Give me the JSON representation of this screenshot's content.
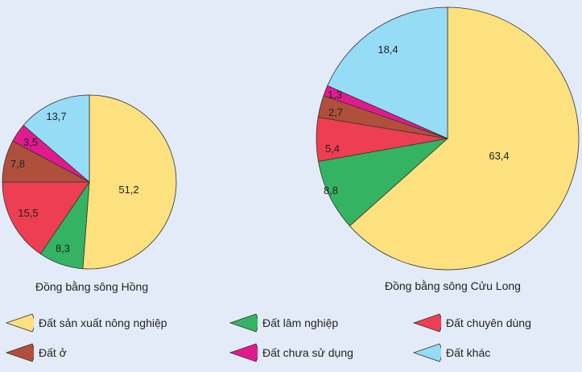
{
  "chart_data": [
    {
      "type": "pie",
      "title": "Đồng bằng sông Hồng",
      "categories": [
        "Đất sản xuất nông nghiệp",
        "Đất lâm nghiệp",
        "Đất chuyên dùng",
        "Đất ở",
        "Đất chưa sử dụng",
        "Đất khác"
      ],
      "values": [
        51.2,
        8.3,
        15.5,
        7.8,
        3.5,
        13.7
      ],
      "labels": [
        "51,2",
        "8,3",
        "15,5",
        "7,8",
        "3,5",
        "13,7"
      ],
      "unit": "%"
    },
    {
      "type": "pie",
      "title": "Đồng bằng sông Cửu Long",
      "categories": [
        "Đất sản xuất nông nghiệp",
        "Đất lâm nghiệp",
        "Đất chuyên dùng",
        "Đất ở",
        "Đất chưa sử dụng",
        "Đất khác"
      ],
      "values": [
        63.4,
        8.8,
        5.4,
        2.7,
        1.3,
        18.4
      ],
      "labels": [
        "63,4",
        "8,8",
        "5,4",
        "2,7",
        "1,3",
        "18,4"
      ],
      "unit": "%"
    }
  ],
  "captions": {
    "left": "Đồng bằng sông Hồng",
    "right": "Đồng bằng sông Cửu Long"
  },
  "legend": [
    {
      "label": "Đất sản xuất nông nghiệp",
      "color": "#fce17e"
    },
    {
      "label": "Đất lâm nghiệp",
      "color": "#34b462"
    },
    {
      "label": "Đất chuyên dùng",
      "color": "#ee3e51"
    },
    {
      "label": "Đất ở",
      "color": "#b0503c"
    },
    {
      "label": "Đất chưa sử dụng",
      "color": "#e3198f"
    },
    {
      "label": "Đất khác",
      "color": "#97dcf6"
    }
  ]
}
